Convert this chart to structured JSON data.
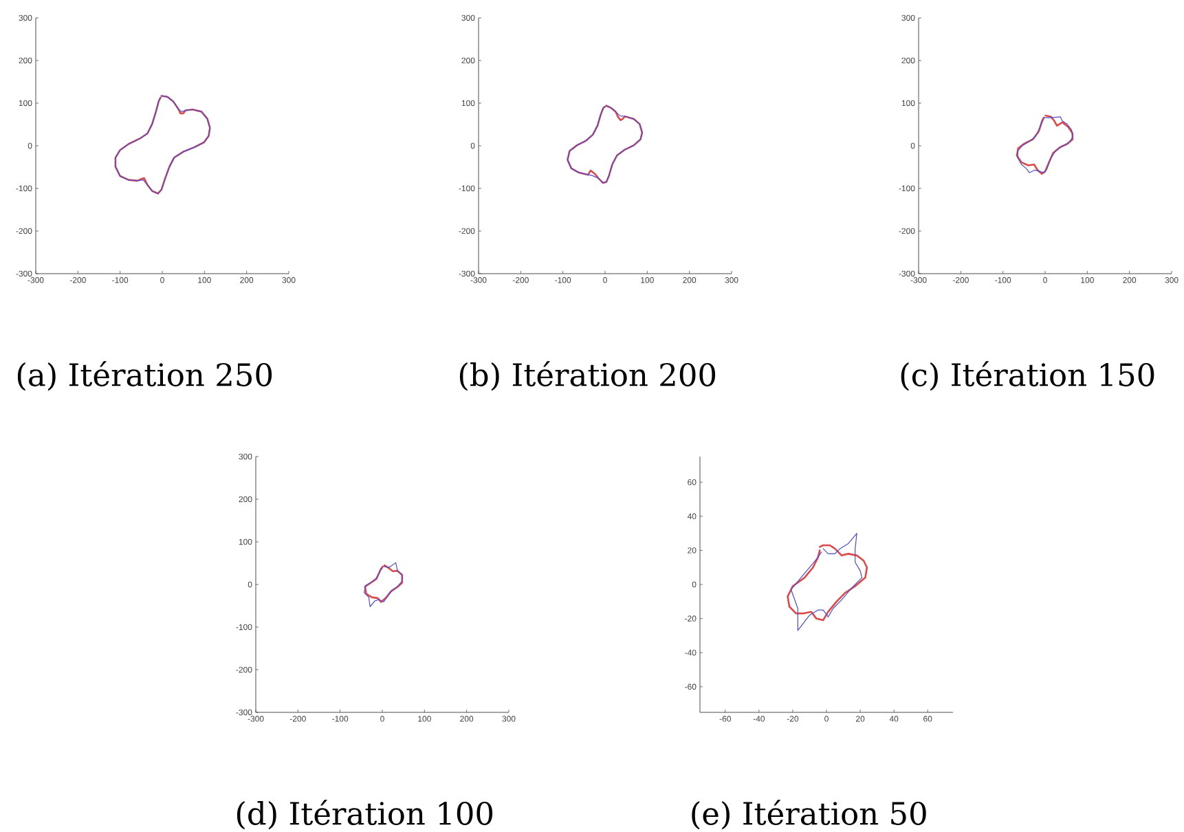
{
  "chart_data": [
    {
      "type": "line",
      "marker": "none",
      "xlim": [
        -300,
        300
      ],
      "ylim": [
        -300,
        300
      ],
      "xticks": [
        -300,
        -200,
        -100,
        0,
        100,
        200,
        300
      ],
      "yticks": [
        -300,
        -200,
        -100,
        0,
        100,
        200,
        300
      ],
      "annotations": [
        "(a) Itération 250"
      ],
      "series": [
        {
          "color": "#e04848",
          "x": [
            -2,
            12,
            26,
            39,
            43,
            50,
            55,
            72,
            93,
            107,
            113,
            110,
            99,
            77,
            50,
            28,
            17,
            7,
            -2,
            -10,
            -24,
            -35,
            -43,
            -50,
            -59,
            -80,
            -100,
            -111,
            -111,
            -100,
            -80,
            -53,
            -35,
            -24,
            -15,
            -8,
            -4
          ],
          "values": [
            117,
            115,
            104,
            85,
            76,
            76,
            83,
            85,
            80,
            63,
            42,
            23,
            8,
            -3,
            -14,
            -28,
            -49,
            -76,
            -103,
            -112,
            -106,
            -92,
            -76,
            -78,
            -82,
            -80,
            -71,
            -49,
            -28,
            -10,
            4,
            17,
            29,
            51,
            80,
            106,
            113
          ]
        },
        {
          "color": "#4b4bd6",
          "x": [
            -2,
            12,
            26,
            39,
            46,
            55,
            72,
            93,
            107,
            113,
            110,
            99,
            77,
            50,
            28,
            17,
            7,
            -2,
            -10,
            -24,
            -35,
            -45,
            -59,
            -80,
            -100,
            -111,
            -111,
            -100,
            -80,
            -53,
            -35,
            -24,
            -15,
            -8,
            -4
          ],
          "values": [
            117,
            115,
            104,
            85,
            80,
            83,
            85,
            80,
            63,
            42,
            23,
            8,
            -3,
            -14,
            -28,
            -49,
            -76,
            -103,
            -112,
            -106,
            -92,
            -80,
            -82,
            -80,
            -71,
            -49,
            -28,
            -10,
            4,
            17,
            29,
            51,
            80,
            106,
            113
          ]
        }
      ]
    },
    {
      "type": "line",
      "marker": "none",
      "xlim": [
        -300,
        300
      ],
      "ylim": [
        -300,
        300
      ],
      "xticks": [
        -300,
        -200,
        -100,
        0,
        100,
        200,
        300
      ],
      "yticks": [
        -300,
        -200,
        -100,
        0,
        100,
        200,
        300
      ],
      "annotations": [
        "(b) Itération 200"
      ],
      "series": [
        {
          "color": "#e04848",
          "x": [
            3,
            14,
            25,
            31,
            37,
            43,
            47,
            68,
            82,
            88,
            84,
            68,
            47,
            28,
            17,
            9,
            3,
            -5,
            -16,
            -24,
            -34,
            -38,
            -40,
            -62,
            -80,
            -89,
            -84,
            -67,
            -45,
            -29,
            -18,
            -10,
            -4,
            0
          ],
          "values": [
            94,
            89,
            80,
            67,
            60,
            64,
            69,
            63,
            51,
            31,
            15,
            1,
            -9,
            -23,
            -44,
            -71,
            -85,
            -87,
            -76,
            -66,
            -58,
            -64,
            -68,
            -63,
            -53,
            -33,
            -12,
            1,
            12,
            26,
            47,
            74,
            89,
            92
          ]
        },
        {
          "color": "#4b4bd6",
          "x": [
            3,
            14,
            25,
            36,
            47,
            68,
            82,
            88,
            84,
            68,
            47,
            28,
            17,
            9,
            3,
            -5,
            -16,
            -30,
            -40,
            -62,
            -80,
            -89,
            -84,
            -67,
            -45,
            -29,
            -18,
            -10,
            -4,
            0
          ],
          "values": [
            94,
            89,
            80,
            70,
            69,
            63,
            51,
            31,
            15,
            1,
            -9,
            -23,
            -44,
            -71,
            -85,
            -87,
            -76,
            -70,
            -68,
            -63,
            -53,
            -33,
            -12,
            1,
            12,
            26,
            47,
            74,
            89,
            92
          ]
        }
      ]
    },
    {
      "type": "line",
      "marker": "none",
      "xlim": [
        -300,
        300
      ],
      "ylim": [
        -300,
        300
      ],
      "xticks": [
        -300,
        -200,
        -100,
        0,
        100,
        200,
        300
      ],
      "yticks": [
        -300,
        -200,
        -100,
        0,
        100,
        200,
        300
      ],
      "annotations": [
        "(c) Itération 150"
      ],
      "series": [
        {
          "color": "#e04848",
          "x": [
            1,
            14,
            22,
            28,
            41,
            55,
            65,
            65,
            52,
            36,
            19,
            9,
            0,
            -8,
            -18,
            -26,
            -40,
            -56,
            -67,
            -64,
            -51,
            -29,
            -15,
            -8,
            -3
          ],
          "values": [
            71,
            68,
            58,
            47,
            55,
            44,
            29,
            15,
            4,
            -3,
            -17,
            -39,
            -60,
            -66,
            -57,
            -44,
            -46,
            -39,
            -23,
            -6,
            4,
            15,
            34,
            55,
            66
          ]
        },
        {
          "color": "#4b4bd6",
          "x": [
            -4,
            14,
            36,
            41,
            52,
            63,
            65,
            57,
            41,
            25,
            14,
            4,
            -2,
            -24,
            -37,
            -45,
            -56,
            -65,
            -65,
            -53,
            -35,
            -22,
            -13,
            -8,
            -6
          ],
          "values": [
            66,
            66,
            68,
            58,
            51,
            37,
            20,
            8,
            -1,
            -12,
            -28,
            -55,
            -63,
            -57,
            -63,
            -53,
            -44,
            -28,
            -12,
            1,
            12,
            23,
            42,
            58,
            63
          ]
        }
      ]
    },
    {
      "type": "line",
      "marker": "none",
      "xlim": [
        -300,
        300
      ],
      "ylim": [
        -300,
        300
      ],
      "xticks": [
        -300,
        -200,
        -100,
        0,
        100,
        200,
        300
      ],
      "yticks": [
        -300,
        -200,
        -100,
        0,
        100,
        200,
        300
      ],
      "annotations": [
        "(d) Itération 100"
      ],
      "series": [
        {
          "color": "#e04848",
          "x": [
            5,
            16,
            25,
            36,
            47,
            47,
            36,
            21,
            8,
            -3,
            -11,
            -25,
            -38,
            -41,
            -27,
            -14,
            -3,
            1
          ],
          "values": [
            45,
            38,
            31,
            32,
            22,
            4,
            -6,
            -16,
            -32,
            -41,
            -32,
            -30,
            -22,
            -5,
            4,
            13,
            37,
            42
          ]
        },
        {
          "color": "#4b4bd6",
          "x": [
            3,
            16,
            32,
            36,
            47,
            47,
            36,
            22,
            11,
            3,
            -8,
            -18,
            -29,
            -32,
            -43,
            -40,
            -27,
            -14,
            -5,
            0
          ],
          "values": [
            42,
            40,
            51,
            32,
            24,
            8,
            -5,
            -14,
            -30,
            -41,
            -35,
            -39,
            -52,
            -30,
            -19,
            -3,
            5,
            15,
            32,
            38
          ]
        }
      ]
    },
    {
      "type": "line",
      "marker": "none",
      "xlim": [
        -75,
        75
      ],
      "ylim": [
        -75,
        75
      ],
      "xticks": [
        -60,
        -40,
        -20,
        0,
        20,
        40,
        60
      ],
      "yticks": [
        -60,
        -40,
        -20,
        0,
        20,
        40,
        60
      ],
      "annotations": [
        "(e) Itération 50"
      ],
      "series": [
        {
          "color": "#e04848",
          "x": [
            -4,
            -2,
            2,
            5,
            9,
            13,
            18,
            22,
            24,
            23,
            17,
            11,
            6,
            1,
            -2,
            -6,
            -9,
            -14,
            -18,
            -22,
            -23,
            -20,
            -13,
            -8,
            -5,
            -4
          ],
          "values": [
            22,
            23,
            23,
            21,
            17,
            18,
            17,
            14,
            10,
            4,
            -1,
            -5,
            -10,
            -16,
            -21,
            -20,
            -16,
            -17,
            -17,
            -13,
            -7,
            -1,
            4,
            10,
            16,
            20
          ]
        },
        {
          "color": "#4b4bd6",
          "x": [
            -2,
            1,
            5,
            8,
            13,
            18,
            17,
            17,
            20,
            21,
            15,
            9,
            4,
            1,
            -2,
            -5,
            -10,
            -17,
            -17,
            -21,
            -16,
            -10,
            -5,
            -3
          ],
          "values": [
            21,
            18,
            18,
            21,
            24,
            30,
            21,
            13,
            8,
            4,
            -2,
            -9,
            -14,
            -19,
            -15,
            -15,
            -18,
            -27,
            -14,
            -3,
            3,
            10,
            16,
            19
          ]
        }
      ]
    }
  ]
}
